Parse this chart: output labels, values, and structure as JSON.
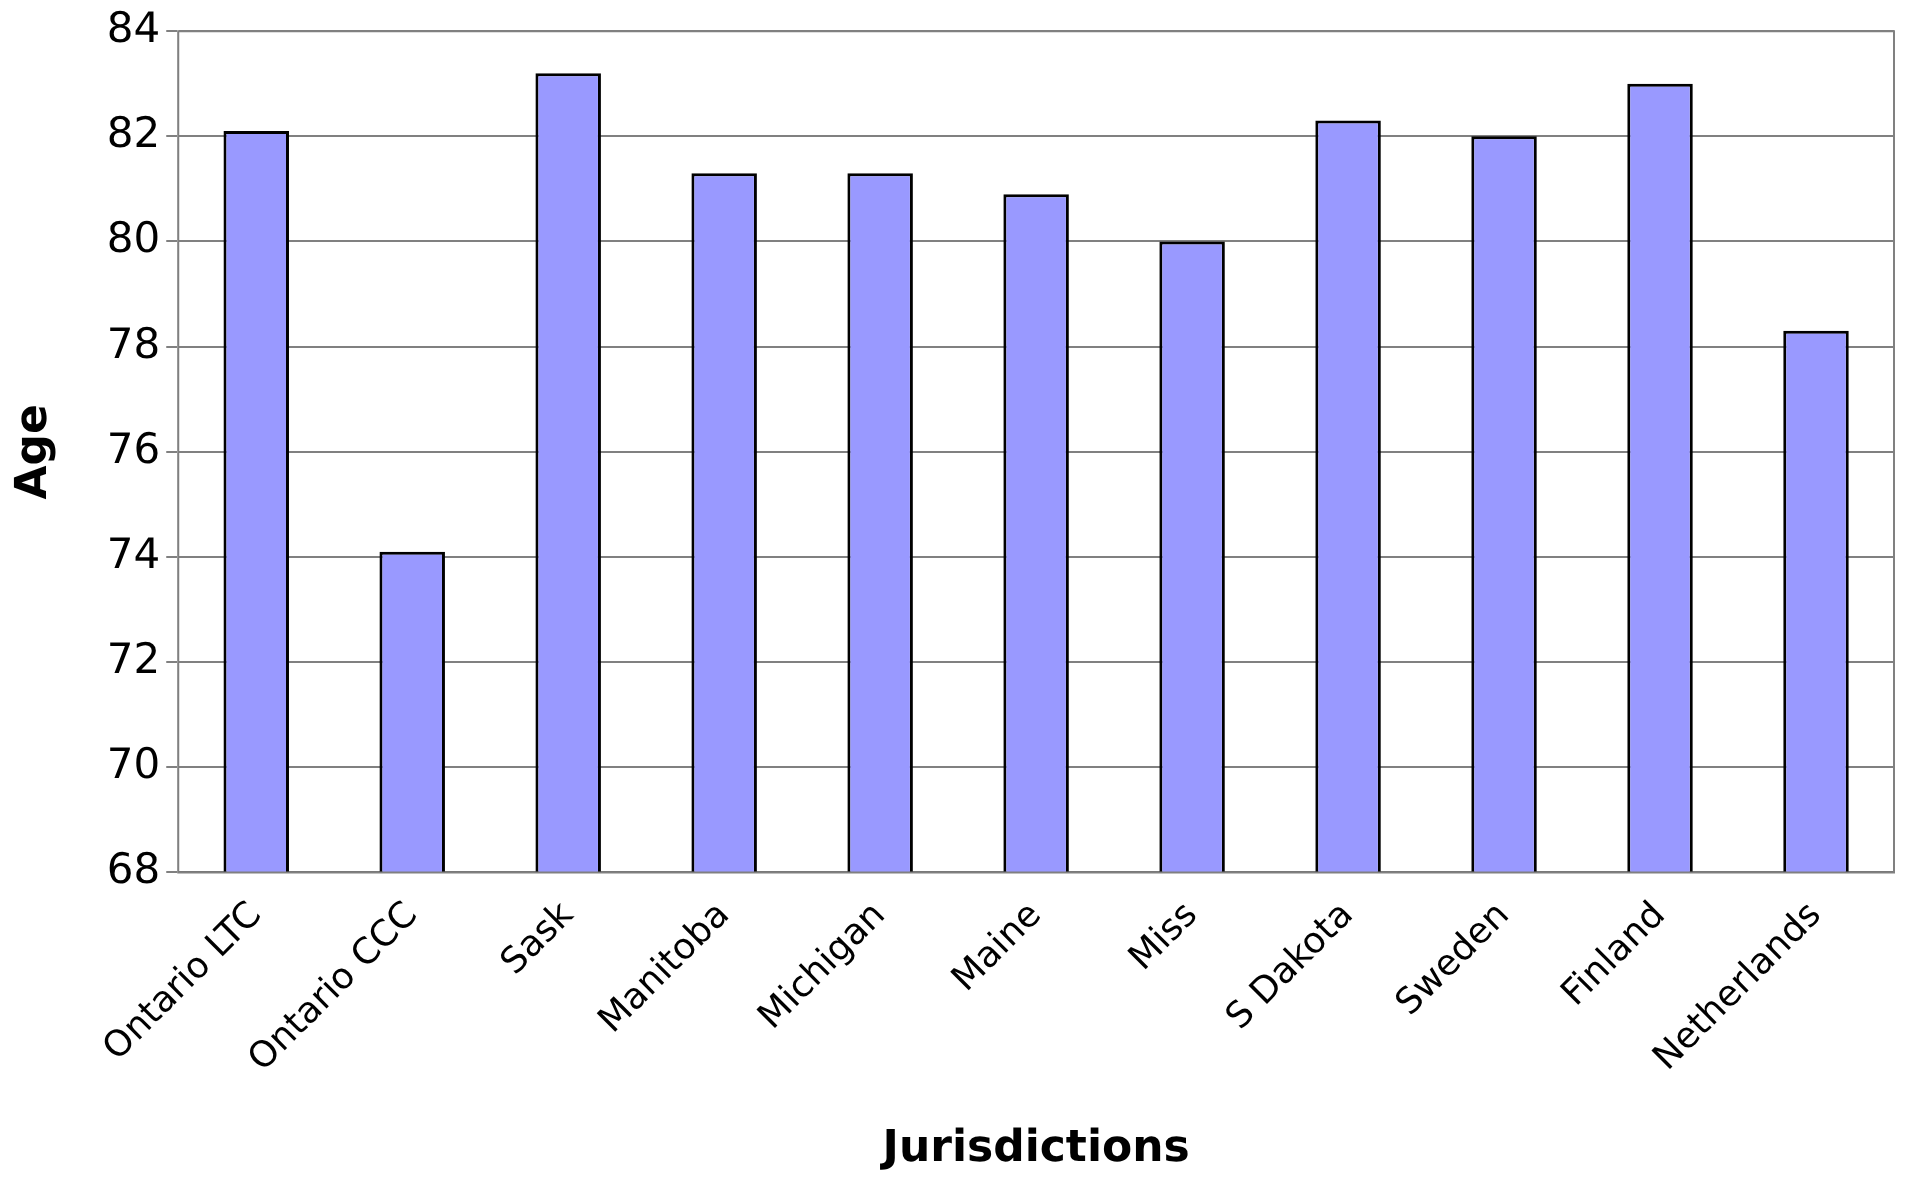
{
  "chart_data": {
    "type": "bar",
    "xlabel": "Jurisdictions",
    "ylabel": "Age",
    "categories": [
      "Ontario LTC",
      "Ontario CCC",
      "Sask",
      "Manitoba",
      "Michigan",
      "Maine",
      "Miss",
      "S Dakota",
      "Sweden",
      "Finland",
      "Netherlands"
    ],
    "values": [
      82.1,
      74.1,
      83.2,
      81.3,
      81.3,
      80.9,
      80.0,
      82.3,
      82.0,
      83.0,
      78.3
    ],
    "color": "#9999ff",
    "ylim": [
      68,
      84
    ],
    "yticks": [
      68,
      70,
      72,
      74,
      76,
      78,
      80,
      82,
      84
    ],
    "grid": "y",
    "legend": false
  }
}
